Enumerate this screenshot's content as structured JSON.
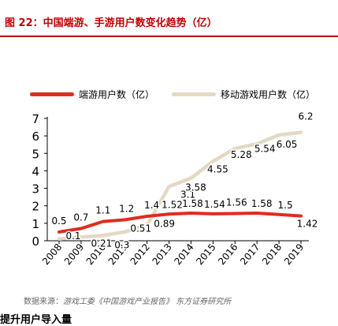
{
  "header": {
    "title": "图 22：中国端游、手游用户数变化趋势（亿）"
  },
  "colors": {
    "accent": "#c00000",
    "series_a": "#e02b20",
    "series_b": "#e3d9c4"
  },
  "chart_data": {
    "type": "line",
    "title": "",
    "xlabel": "",
    "ylabel": "",
    "x": [
      "2008",
      "2009",
      "2010",
      "2011",
      "2012",
      "2013",
      "2014",
      "2015",
      "2016",
      "2017",
      "2018",
      "2019"
    ],
    "ylim": [
      0,
      7
    ],
    "yticks": [
      "0",
      "1",
      "2",
      "3",
      "4",
      "5",
      "6",
      "7"
    ],
    "grid": false,
    "legend_position": "top",
    "series": [
      {
        "name": "端游用户数（亿）",
        "color": "#e02b20",
        "values": [
          0.5,
          0.7,
          1.1,
          1.2,
          1.4,
          1.52,
          1.58,
          1.54,
          1.56,
          1.58,
          1.5,
          1.42
        ],
        "labels": [
          "0.5",
          "0.7",
          "1.1",
          "1.2",
          "1.4",
          "1.52",
          "1.58",
          "1.54",
          "1.56",
          "1.58",
          "1.5",
          "1.42"
        ]
      },
      {
        "name": "移动游戏用户数（亿）",
        "color": "#e3d9c4",
        "values": [
          0.1,
          0.21,
          0.3,
          0.51,
          0.89,
          3.1,
          3.58,
          4.55,
          5.28,
          5.54,
          6.05,
          6.2
        ],
        "labels": [
          "0.1",
          "0.21",
          "0.3",
          "0.51",
          "0.89",
          "3.1",
          "3.58",
          "4.55",
          "5.28",
          "5.54",
          "6.05",
          "6.2"
        ]
      }
    ]
  },
  "source": {
    "prefix": "数据来源：",
    "text": "游戏工委《中国游戏产业报告》 东方证券研究所"
  },
  "next_heading": "提升用户导入量"
}
